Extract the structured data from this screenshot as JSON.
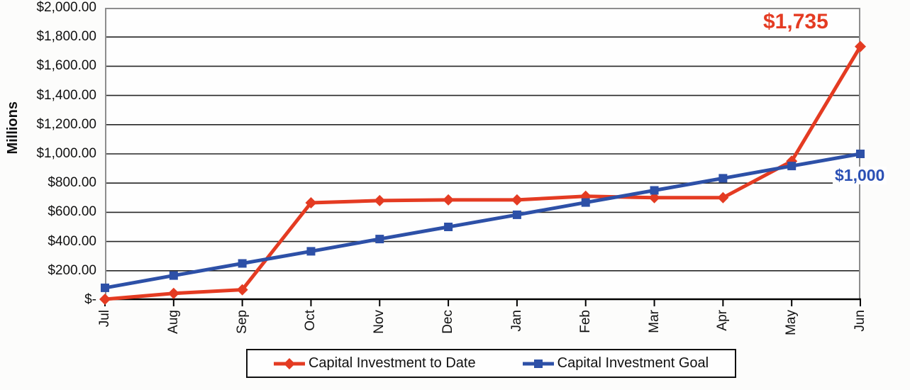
{
  "chart_data": {
    "type": "line",
    "title": "",
    "categories": [
      "Jul",
      "Aug",
      "Sep",
      "Oct",
      "Nov",
      "Dec",
      "Jan",
      "Feb",
      "Mar",
      "Apr",
      "May",
      "Jun"
    ],
    "series": [
      {
        "name": "Capital Investment to Date",
        "marker": "diamond",
        "color": "#e43b22",
        "values": [
          5,
          45,
          70,
          665,
          680,
          685,
          685,
          710,
          700,
          700,
          950,
          1735
        ]
      },
      {
        "name": "Capital Investment Goal",
        "marker": "square",
        "color": "#2d50a7",
        "values": [
          83,
          167,
          250,
          333,
          417,
          500,
          583,
          667,
          750,
          833,
          917,
          1000
        ]
      }
    ],
    "xlabel": "",
    "ylabel": "Millions",
    "ylim": [
      0,
      2000
    ],
    "y_tick_step": 200,
    "y_tick_labels": [
      "$2,000.00",
      "$1,800.00",
      "$1,600.00",
      "$1,400.00",
      "$1,200.00",
      "$1,000.00",
      "$800.00",
      "$600.00",
      "$400.00",
      "$200.00",
      "$-"
    ],
    "grid": "horizontal",
    "legend_position": "bottom",
    "annotations": [
      {
        "text": "$1,735",
        "series": "Capital Investment to Date",
        "color": "#e43b22"
      },
      {
        "text": "$1,000",
        "series": "Capital Investment Goal",
        "color": "#2b50b4"
      }
    ],
    "colors": {
      "grid": "#262626",
      "plot_border": "#8d8d8d",
      "axis": "#000000",
      "plot_background": "#fefefe",
      "text": "#141414"
    }
  }
}
